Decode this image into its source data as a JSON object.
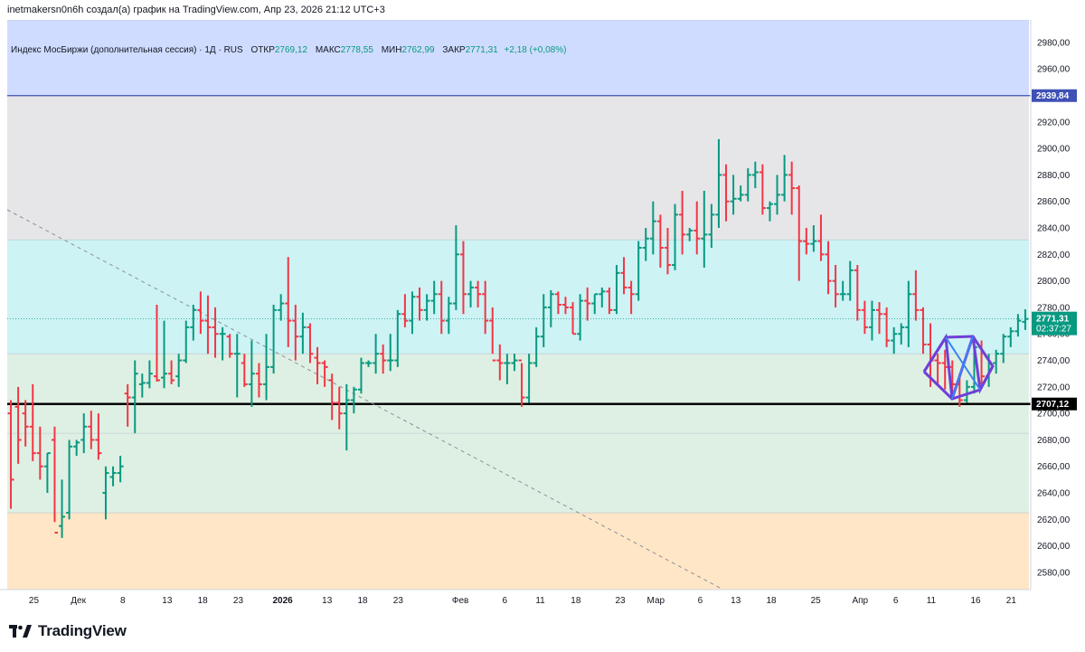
{
  "header": {
    "author_line": "inetmakersn0n6h создал(а) график на TradingView.com, Апр 23, 2026 21:12 UTC+3"
  },
  "legend": {
    "instrument": "Индекс МосБиржи (дополнительная сессия) · 1Д · RUS",
    "open_label": "ОТКР",
    "open_value": "2769,12",
    "high_label": "МАКС",
    "high_value": "2778,55",
    "low_label": "МИН",
    "low_value": "2762,99",
    "close_label": "ЗАКР",
    "close_value": "2771,31",
    "change": "+2,18 (+0,08%)"
  },
  "footer": {
    "logo_text": "TradingView"
  },
  "colors": {
    "up": "#089981",
    "down": "#f23645",
    "blue_zone": "#cfdcff",
    "grey_zone": "#e6e6e8",
    "cyan_zone": "#cdf3f5",
    "green_zone": "#def0e3",
    "orange_zone": "#fee6c6",
    "blue_line": "#3f51b5",
    "support_line": "#000000",
    "pattern": "#6f3fd8"
  },
  "chart_data": {
    "type": "ohlc",
    "y_range": [
      2567,
      2997
    ],
    "y_ticks": [
      "2980,00",
      "2960,00",
      "2940,00",
      "2920,00",
      "2900,00",
      "2880,00",
      "2860,00",
      "2840,00",
      "2820,00",
      "2800,00",
      "2780,00",
      "2760,00",
      "2740,00",
      "2720,00",
      "2700,00",
      "2680,00",
      "2660,00",
      "2640,00",
      "2620,00",
      "2600,00",
      "2580,00"
    ],
    "x_ticks": [
      {
        "label": "25",
        "bar": 3
      },
      {
        "label": "Дек",
        "bar": 8,
        "bold": false
      },
      {
        "label": "8",
        "bar": 13
      },
      {
        "label": "13",
        "bar": 18
      },
      {
        "label": "18",
        "bar": 22
      },
      {
        "label": "23",
        "bar": 26
      },
      {
        "label": "2026",
        "bar": 31,
        "bold": true
      },
      {
        "label": "13",
        "bar": 36
      },
      {
        "label": "18",
        "bar": 40
      },
      {
        "label": "23",
        "bar": 44
      },
      {
        "label": "Фев",
        "bar": 51
      },
      {
        "label": "6",
        "bar": 56
      },
      {
        "label": "11",
        "bar": 60
      },
      {
        "label": "18",
        "bar": 64
      },
      {
        "label": "23",
        "bar": 69
      },
      {
        "label": "Мар",
        "bar": 73
      },
      {
        "label": "6",
        "bar": 78
      },
      {
        "label": "13",
        "bar": 82
      },
      {
        "label": "18",
        "bar": 86
      },
      {
        "label": "25",
        "bar": 91
      },
      {
        "label": "Апр",
        "bar": 96
      },
      {
        "label": "6",
        "bar": 100
      },
      {
        "label": "11",
        "bar": 104
      },
      {
        "label": "16",
        "bar": 109
      },
      {
        "label": "21",
        "bar": 113
      }
    ],
    "zones": [
      {
        "from": 2939.84,
        "to": 2997,
        "color_key": "blue_zone"
      },
      {
        "from": 2831,
        "to": 2939.84,
        "color_key": "grey_zone"
      },
      {
        "from": 2745,
        "to": 2831,
        "color_key": "cyan_zone"
      },
      {
        "from": 2685,
        "to": 2745,
        "color_key": "green_zone"
      },
      {
        "from": 2625,
        "to": 2685,
        "color_key": "green_zone"
      },
      {
        "from": 2567,
        "to": 2625,
        "color_key": "orange_zone"
      }
    ],
    "horizontal_lines": [
      {
        "value": 2939.84,
        "label": "2939,84",
        "color_key": "blue_line"
      },
      {
        "value": 2707.12,
        "label": "2707,12",
        "color_key": "support_line"
      }
    ],
    "last_price": {
      "label": "2771,31",
      "countdown": "02:37:27",
      "value": 2771.31
    },
    "bars": [
      [
        2700,
        2710,
        2628,
        2650
      ],
      [
        2705,
        2720,
        2662,
        2680
      ],
      [
        2700,
        2710,
        2675,
        2690
      ],
      [
        2690,
        2722,
        2664,
        2670
      ],
      [
        2670,
        2690,
        2650,
        2660
      ],
      [
        2660,
        2670,
        2640,
        2670
      ],
      [
        2680,
        2690,
        2618,
        2610
      ],
      [
        2615,
        2650,
        2606,
        2622
      ],
      [
        2625,
        2680,
        2620,
        2675
      ],
      [
        2675,
        2680,
        2668,
        2678
      ],
      [
        2680,
        2700,
        2670,
        2690
      ],
      [
        2690,
        2702,
        2673,
        2680
      ],
      [
        2680,
        2700,
        2665,
        2670
      ],
      [
        2640,
        2660,
        2620,
        2655
      ],
      [
        2652,
        2660,
        2645,
        2655
      ],
      [
        2655,
        2668,
        2648,
        2660
      ],
      [
        2715,
        2722,
        2690,
        2712
      ],
      [
        2712,
        2740,
        2685,
        2730
      ],
      [
        2722,
        2730,
        2712,
        2723
      ],
      [
        2723,
        2740,
        2719,
        2730
      ],
      [
        2728,
        2782,
        2724,
        2725
      ],
      [
        2727,
        2770,
        2719,
        2730
      ],
      [
        2730,
        2740,
        2722,
        2725
      ],
      [
        2728,
        2745,
        2720,
        2740
      ],
      [
        2740,
        2770,
        2738,
        2765
      ],
      [
        2765,
        2782,
        2755,
        2778
      ],
      [
        2778,
        2792,
        2760,
        2770
      ],
      [
        2770,
        2789,
        2745,
        2765
      ],
      [
        2765,
        2780,
        2742,
        2760
      ],
      [
        2760,
        2765,
        2740,
        2760
      ],
      [
        2758,
        2760,
        2742,
        2745
      ],
      [
        2745,
        2760,
        2712,
        2745
      ],
      [
        2738,
        2745,
        2720,
        2722
      ],
      [
        2722,
        2755,
        2705,
        2730
      ],
      [
        2730,
        2738,
        2712,
        2722
      ],
      [
        2722,
        2760,
        2710,
        2735
      ],
      [
        2735,
        2782,
        2730,
        2778
      ],
      [
        2778,
        2790,
        2770,
        2783
      ],
      [
        2783,
        2818,
        2750,
        2770
      ],
      [
        2770,
        2782,
        2740,
        2758
      ],
      [
        2758,
        2776,
        2745,
        2765
      ],
      [
        2765,
        2768,
        2738,
        2745
      ],
      [
        2742,
        2750,
        2722,
        2738
      ],
      [
        2738,
        2740,
        2720,
        2735
      ],
      [
        2725,
        2730,
        2695,
        2708
      ],
      [
        2708,
        2720,
        2688,
        2700
      ],
      [
        2700,
        2722,
        2672,
        2710
      ],
      [
        2710,
        2720,
        2700,
        2718
      ],
      [
        2718,
        2742,
        2715,
        2738
      ],
      [
        2738,
        2740,
        2735,
        2738
      ],
      [
        2738,
        2760,
        2730,
        2745
      ],
      [
        2745,
        2752,
        2730,
        2740
      ],
      [
        2740,
        2760,
        2732,
        2740
      ],
      [
        2740,
        2778,
        2735,
        2775
      ],
      [
        2775,
        2790,
        2765,
        2770
      ],
      [
        2770,
        2792,
        2760,
        2788
      ],
      [
        2788,
        2795,
        2770,
        2778
      ],
      [
        2778,
        2790,
        2770,
        2785
      ],
      [
        2785,
        2800,
        2775,
        2790
      ],
      [
        2790,
        2800,
        2760,
        2770
      ],
      [
        2770,
        2788,
        2760,
        2783
      ],
      [
        2783,
        2842,
        2778,
        2820
      ],
      [
        2820,
        2830,
        2775,
        2790
      ],
      [
        2790,
        2800,
        2780,
        2795
      ],
      [
        2795,
        2800,
        2780,
        2790
      ],
      [
        2790,
        2800,
        2760,
        2770
      ],
      [
        2770,
        2780,
        2745,
        2740
      ],
      [
        2740,
        2752,
        2725,
        2738
      ],
      [
        2738,
        2745,
        2722,
        2738
      ],
      [
        2738,
        2745,
        2732,
        2740
      ],
      [
        2740,
        2738,
        2705,
        2712
      ],
      [
        2712,
        2745,
        2708,
        2738
      ],
      [
        2738,
        2765,
        2735,
        2758
      ],
      [
        2758,
        2790,
        2750,
        2780
      ],
      [
        2780,
        2793,
        2765,
        2790
      ],
      [
        2790,
        2792,
        2775,
        2782
      ],
      [
        2782,
        2788,
        2775,
        2780
      ],
      [
        2780,
        2784,
        2760,
        2760
      ],
      [
        2760,
        2790,
        2755,
        2785
      ],
      [
        2785,
        2795,
        2770,
        2783
      ],
      [
        2783,
        2790,
        2775,
        2790
      ],
      [
        2790,
        2795,
        2780,
        2792
      ],
      [
        2792,
        2795,
        2775,
        2778
      ],
      [
        2778,
        2812,
        2775,
        2806
      ],
      [
        2806,
        2818,
        2790,
        2795
      ],
      [
        2795,
        2800,
        2775,
        2790
      ],
      [
        2790,
        2830,
        2785,
        2825
      ],
      [
        2825,
        2840,
        2815,
        2832
      ],
      [
        2832,
        2860,
        2820,
        2845
      ],
      [
        2845,
        2850,
        2810,
        2825
      ],
      [
        2825,
        2840,
        2805,
        2812
      ],
      [
        2812,
        2858,
        2808,
        2850
      ],
      [
        2850,
        2868,
        2820,
        2835
      ],
      [
        2835,
        2840,
        2830,
        2838
      ],
      [
        2838,
        2860,
        2820,
        2832
      ],
      [
        2832,
        2868,
        2810,
        2835
      ],
      [
        2835,
        2858,
        2825,
        2850
      ],
      [
        2850,
        2907,
        2840,
        2880
      ],
      [
        2880,
        2888,
        2845,
        2860
      ],
      [
        2860,
        2880,
        2850,
        2862
      ],
      [
        2862,
        2872,
        2860,
        2865
      ],
      [
        2865,
        2885,
        2860,
        2880
      ],
      [
        2880,
        2890,
        2870,
        2882
      ],
      [
        2882,
        2888,
        2850,
        2855
      ],
      [
        2855,
        2860,
        2845,
        2858
      ],
      [
        2858,
        2880,
        2850,
        2865
      ],
      [
        2865,
        2895,
        2860,
        2880
      ],
      [
        2880,
        2890,
        2850,
        2870
      ],
      [
        2870,
        2872,
        2800,
        2830
      ],
      [
        2830,
        2840,
        2820,
        2828
      ],
      [
        2828,
        2842,
        2822,
        2830
      ],
      [
        2830,
        2850,
        2815,
        2820
      ],
      [
        2820,
        2830,
        2790,
        2800
      ],
      [
        2800,
        2812,
        2780,
        2790
      ],
      [
        2790,
        2800,
        2785,
        2790
      ],
      [
        2790,
        2815,
        2785,
        2808
      ],
      [
        2808,
        2812,
        2770,
        2778
      ],
      [
        2778,
        2785,
        2760,
        2765
      ],
      [
        2765,
        2785,
        2755,
        2778
      ],
      [
        2778,
        2784,
        2760,
        2775
      ],
      [
        2775,
        2780,
        2750,
        2755
      ],
      [
        2755,
        2765,
        2745,
        2760
      ],
      [
        2760,
        2768,
        2752,
        2765
      ],
      [
        2765,
        2800,
        2750,
        2790
      ],
      [
        2790,
        2808,
        2770,
        2778
      ],
      [
        2778,
        2780,
        2745,
        2752
      ],
      [
        2752,
        2768,
        2720,
        2740
      ],
      [
        2740,
        2745,
        2722,
        2738
      ],
      [
        2738,
        2748,
        2718,
        2735
      ],
      [
        2735,
        2740,
        2712,
        2722
      ],
      [
        2722,
        2730,
        2705,
        2710
      ],
      [
        2710,
        2725,
        2708,
        2720
      ],
      [
        2720,
        2758,
        2715,
        2750
      ],
      [
        2750,
        2755,
        2722,
        2728
      ],
      [
        2728,
        2745,
        2720,
        2738
      ],
      [
        2738,
        2748,
        2730,
        2745
      ],
      [
        2745,
        2760,
        2738,
        2758
      ],
      [
        2758,
        2765,
        2750,
        2762
      ],
      [
        2762,
        2775,
        2758,
        2770
      ],
      [
        2769.12,
        2778.55,
        2762.99,
        2771.31
      ]
    ]
  }
}
